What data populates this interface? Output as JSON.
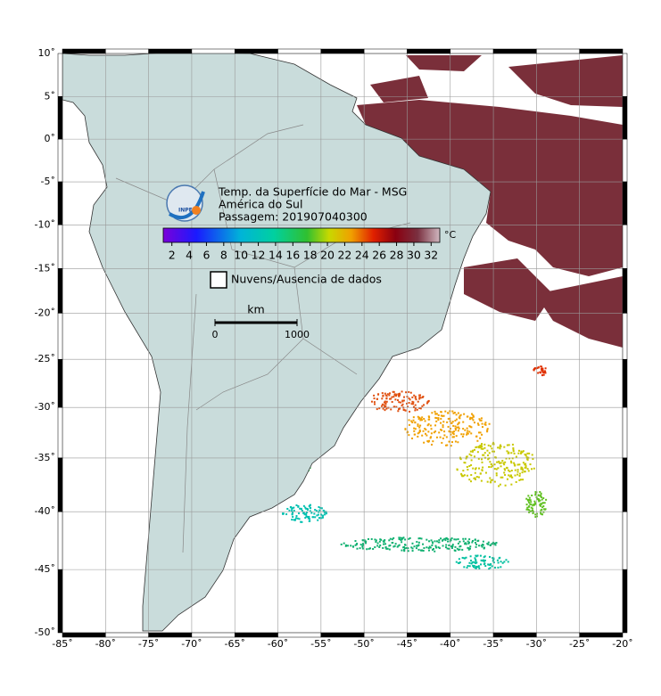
{
  "title_block": {
    "lines": [
      "Temp. da Superfície do Mar - MSG",
      "América do Sul",
      "Passagem: 201907040300"
    ],
    "logo_text": "INPE"
  },
  "colorbar": {
    "range": [
      1,
      33
    ],
    "ticks": [
      2,
      4,
      6,
      8,
      10,
      12,
      14,
      16,
      18,
      20,
      22,
      24,
      26,
      28,
      30,
      32
    ],
    "unit": "°C"
  },
  "legend": {
    "label": "Nuvens/Ausencia de dados"
  },
  "scale_bar": {
    "unit": "km",
    "ticks": [
      0,
      1000
    ]
  },
  "axes": {
    "lat_ticks": [
      {
        "value": 10,
        "label": "10˚"
      },
      {
        "value": 5,
        "label": "5˚"
      },
      {
        "value": 0,
        "label": "0˚"
      },
      {
        "value": -5,
        "label": "-5˚"
      },
      {
        "value": -10,
        "label": "-10˚"
      },
      {
        "value": -15,
        "label": "-15˚"
      },
      {
        "value": -20,
        "label": "-20˚"
      },
      {
        "value": -25,
        "label": "-25˚"
      },
      {
        "value": -30,
        "label": "-30˚"
      },
      {
        "value": -35,
        "label": "-35˚"
      },
      {
        "value": -40,
        "label": "-40˚"
      },
      {
        "value": -45,
        "label": "-45˚"
      },
      {
        "value": -50,
        "label": "-50˚"
      }
    ],
    "lon_ticks": [
      {
        "value": -85,
        "label": "-85˚"
      },
      {
        "value": -80,
        "label": "-80˚"
      },
      {
        "value": -75,
        "label": "-75˚"
      },
      {
        "value": -70,
        "label": "-70˚"
      },
      {
        "value": -65,
        "label": "-65˚"
      },
      {
        "value": -60,
        "label": "-60˚"
      },
      {
        "value": -55,
        "label": "-55˚"
      },
      {
        "value": -50,
        "label": "-50˚"
      },
      {
        "value": -45,
        "label": "-45˚"
      },
      {
        "value": -40,
        "label": "-40˚"
      },
      {
        "value": -35,
        "label": "-35˚"
      },
      {
        "value": -30,
        "label": "-30˚"
      },
      {
        "value": -25,
        "label": "-25˚"
      },
      {
        "value": -20,
        "label": "-20˚"
      }
    ]
  }
}
